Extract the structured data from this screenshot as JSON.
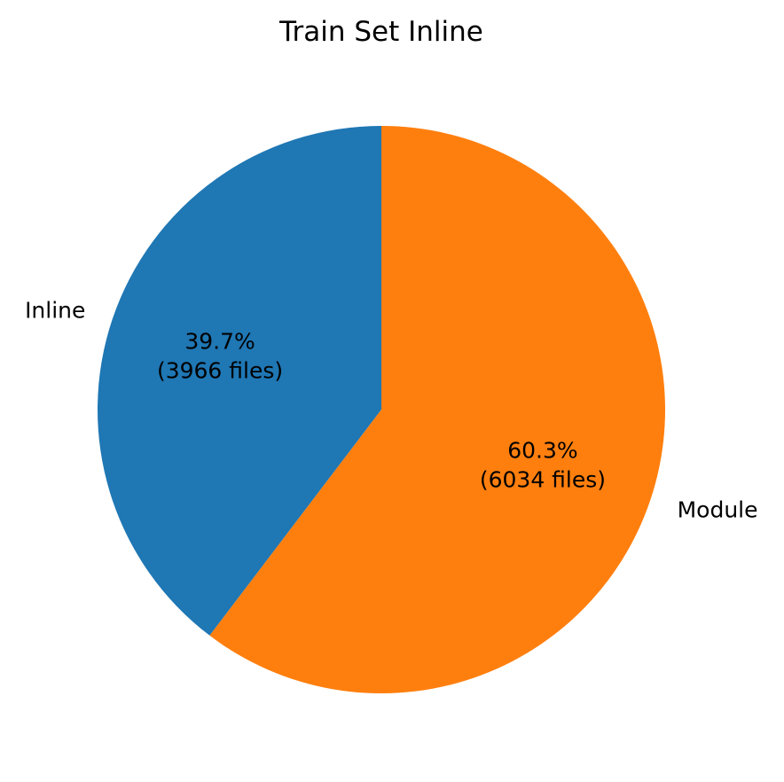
{
  "chart_data": {
    "type": "pie",
    "title": "Train Set Inline",
    "slices": [
      {
        "label": "Inline",
        "value": 3966,
        "percent_label": "39.7%",
        "count_label": "(3966 files)",
        "color": "#1f77b4"
      },
      {
        "label": "Module",
        "value": 6034,
        "percent_label": "60.3%",
        "count_label": "(6034 files)",
        "color": "#ff7f0e"
      }
    ],
    "start_angle_deg": 90,
    "direction": "counterclockwise"
  }
}
